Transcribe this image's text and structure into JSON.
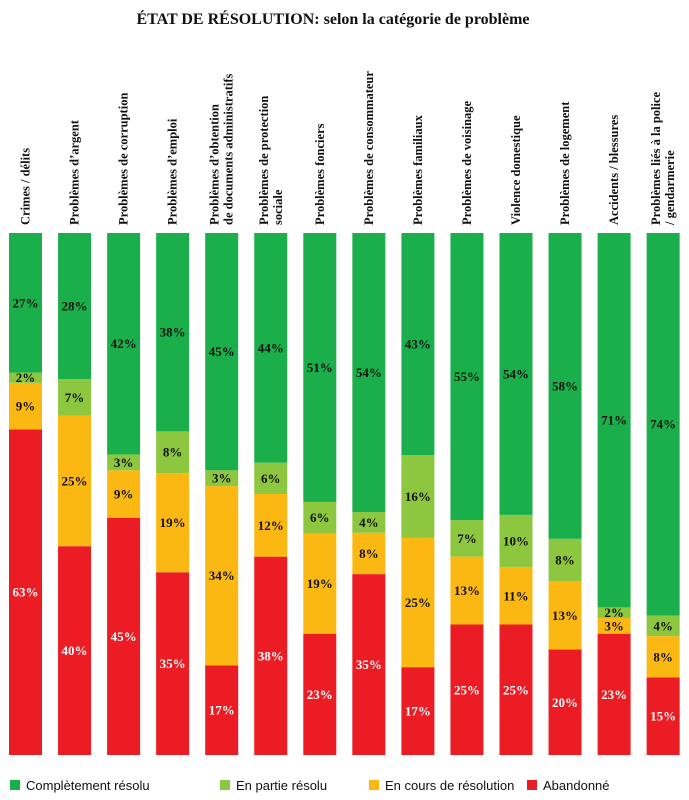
{
  "chart_data": {
    "type": "bar",
    "stacked": true,
    "orientation": "vertical",
    "title": "ÉTAT DE RÉSOLUTION: selon la catégorie de problème",
    "ylim": [
      0,
      100
    ],
    "grid": false,
    "legend_position": "bottom",
    "categories": [
      [
        "Crimes / délits"
      ],
      [
        "Problèmes d’argent"
      ],
      [
        "Problèmes de corruption"
      ],
      [
        "Problèmes d’emploi"
      ],
      [
        "Problèmes d’obtention",
        "de documents administratifs"
      ],
      [
        "Problèmes de protection",
        "sociale"
      ],
      [
        "Problèmes fonciers"
      ],
      [
        "Problèmes de consommateur"
      ],
      [
        "Problèmes familiaux"
      ],
      [
        "Problèmes de voisinage"
      ],
      [
        "Violence domestique"
      ],
      [
        "Problèmes de logement"
      ],
      [
        "Accidents / blessures"
      ],
      [
        "Problèmes liés à la police",
        "/ gendarmerie"
      ]
    ],
    "series": [
      {
        "name": "Abandonné",
        "color": "#ec1c24",
        "label_color": "#ffffff",
        "values": [
          63,
          40,
          45,
          35,
          17,
          38,
          23,
          35,
          17,
          25,
          25,
          20,
          23,
          15
        ]
      },
      {
        "name": "En cours de résolution",
        "color": "#fbb813",
        "label_color": "#111111",
        "values": [
          9,
          25,
          9,
          19,
          34,
          12,
          19,
          8,
          25,
          13,
          11,
          13,
          3,
          8
        ]
      },
      {
        "name": "En partie résolu",
        "color": "#8dc63f",
        "label_color": "#111111",
        "values": [
          2,
          7,
          3,
          8,
          3,
          6,
          6,
          4,
          16,
          7,
          10,
          8,
          2,
          4
        ]
      },
      {
        "name": "Complètement résolu",
        "color": "#1aaf4b",
        "label_color": "#111111",
        "values": [
          27,
          28,
          42,
          38,
          45,
          44,
          51,
          54,
          43,
          55,
          54,
          58,
          71,
          74
        ]
      }
    ],
    "legend_order": [
      "Complètement résolu",
      "En partie résolu",
      "En cours de résolution",
      "Abandonné"
    ]
  }
}
